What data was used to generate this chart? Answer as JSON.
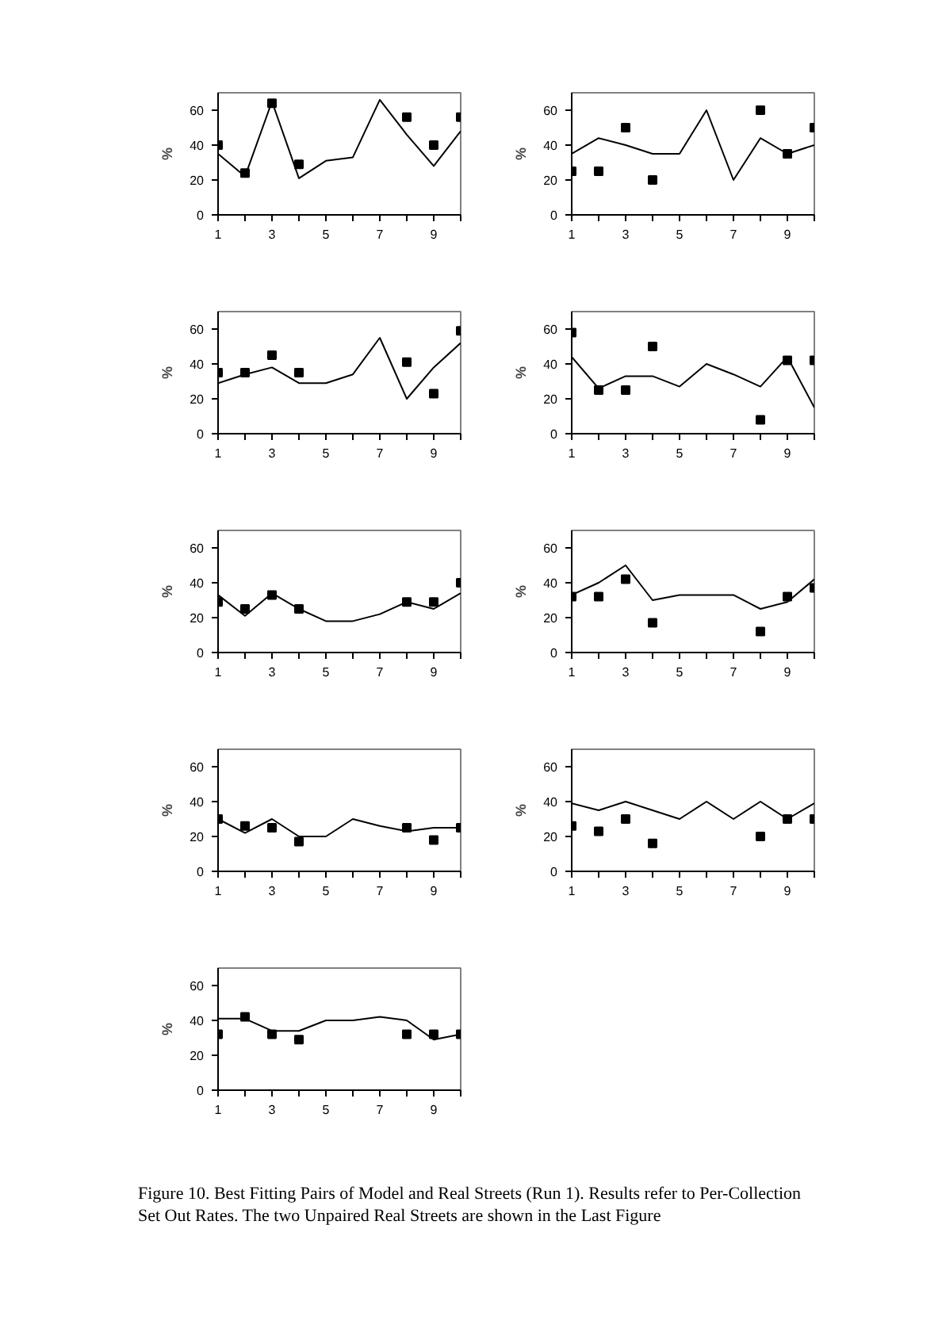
{
  "chart_data": [
    {
      "type": "line",
      "ylabel": "%",
      "x": [
        1,
        2,
        3,
        4,
        5,
        6,
        7,
        8,
        9,
        10
      ],
      "xlim": [
        1,
        10
      ],
      "ylim": [
        0,
        70
      ],
      "xticks": [
        1,
        {
          "value": 2,
          "label": null
        },
        3,
        {
          "value": 4,
          "label": null
        },
        5,
        {
          "value": 6,
          "label": null
        },
        7,
        {
          "value": 8,
          "label": null
        },
        9,
        {
          "value": 10,
          "label": null
        }
      ],
      "yticks": [
        0,
        20,
        40,
        60
      ],
      "series": [
        {
          "color": "#000000",
          "marker": "none",
          "values": [
            35,
            22,
            65,
            21,
            31,
            33,
            66,
            46,
            28,
            48
          ]
        },
        {
          "type": "scatter",
          "color": "#000000",
          "marker": "square",
          "x": [
            1,
            2,
            3,
            4,
            8,
            9,
            10
          ],
          "values": [
            40,
            24,
            64,
            29,
            56,
            40,
            56
          ]
        }
      ]
    },
    {
      "type": "line",
      "ylabel": "%",
      "x": [
        1,
        2,
        3,
        4,
        5,
        6,
        7,
        8,
        9,
        10
      ],
      "xlim": [
        1,
        10
      ],
      "ylim": [
        0,
        70
      ],
      "xticks": [
        1,
        {
          "value": 2,
          "label": null
        },
        3,
        {
          "value": 4,
          "label": null
        },
        5,
        {
          "value": 6,
          "label": null
        },
        7,
        {
          "value": 8,
          "label": null
        },
        9,
        {
          "value": 10,
          "label": null
        }
      ],
      "yticks": [
        0,
        20,
        40,
        60
      ],
      "series": [
        {
          "color": "#000000",
          "marker": "none",
          "values": [
            35,
            44,
            40,
            35,
            35,
            60,
            20,
            44,
            35,
            40
          ]
        },
        {
          "type": "scatter",
          "color": "#000000",
          "marker": "square",
          "x": [
            1,
            2,
            3,
            4,
            8,
            9,
            10
          ],
          "values": [
            25,
            25,
            50,
            20,
            60,
            35,
            50
          ]
        }
      ]
    },
    {
      "type": "line",
      "ylabel": "%",
      "x": [
        1,
        2,
        3,
        4,
        5,
        6,
        7,
        8,
        9,
        10
      ],
      "xlim": [
        1,
        10
      ],
      "ylim": [
        0,
        70
      ],
      "xticks": [
        1,
        {
          "value": 2,
          "label": null
        },
        3,
        {
          "value": 4,
          "label": null
        },
        5,
        {
          "value": 6,
          "label": null
        },
        7,
        {
          "value": 8,
          "label": null
        },
        9,
        {
          "value": 10,
          "label": null
        }
      ],
      "yticks": [
        0,
        20,
        40,
        60
      ],
      "series": [
        {
          "color": "#000000",
          "marker": "none",
          "values": [
            29,
            34,
            38,
            29,
            29,
            34,
            55,
            20,
            38,
            52
          ]
        },
        {
          "type": "scatter",
          "color": "#000000",
          "marker": "square",
          "x": [
            1,
            2,
            3,
            4,
            8,
            9,
            10
          ],
          "values": [
            35,
            35,
            45,
            35,
            41,
            23,
            59
          ]
        }
      ]
    },
    {
      "type": "line",
      "ylabel": "%",
      "x": [
        1,
        2,
        3,
        4,
        5,
        6,
        7,
        8,
        9,
        10
      ],
      "xlim": [
        1,
        10
      ],
      "ylim": [
        0,
        70
      ],
      "xticks": [
        1,
        {
          "value": 2,
          "label": null
        },
        3,
        {
          "value": 4,
          "label": null
        },
        5,
        {
          "value": 6,
          "label": null
        },
        7,
        {
          "value": 8,
          "label": null
        },
        9,
        {
          "value": 10,
          "label": null
        }
      ],
      "yticks": [
        0,
        20,
        40,
        60
      ],
      "series": [
        {
          "color": "#000000",
          "marker": "none",
          "values": [
            44,
            26,
            33,
            33,
            27,
            40,
            34,
            27,
            44,
            15
          ]
        },
        {
          "type": "scatter",
          "color": "#000000",
          "marker": "square",
          "x": [
            1,
            2,
            3,
            4,
            8,
            9,
            10
          ],
          "values": [
            58,
            25,
            25,
            50,
            8,
            42,
            42
          ]
        }
      ]
    },
    {
      "type": "line",
      "ylabel": "%",
      "x": [
        1,
        2,
        3,
        4,
        5,
        6,
        7,
        8,
        9,
        10
      ],
      "xlim": [
        1,
        10
      ],
      "ylim": [
        0,
        70
      ],
      "xticks": [
        1,
        {
          "value": 2,
          "label": null
        },
        3,
        {
          "value": 4,
          "label": null
        },
        5,
        {
          "value": 6,
          "label": null
        },
        7,
        {
          "value": 8,
          "label": null
        },
        9,
        {
          "value": 10,
          "label": null
        }
      ],
      "yticks": [
        0,
        20,
        40,
        60
      ],
      "series": [
        {
          "color": "#000000",
          "marker": "none",
          "values": [
            33,
            21,
            34,
            25,
            18,
            18,
            22,
            29,
            25,
            34
          ]
        },
        {
          "type": "scatter",
          "color": "#000000",
          "marker": "square",
          "x": [
            1,
            2,
            3,
            4,
            8,
            9,
            10
          ],
          "values": [
            29,
            25,
            33,
            25,
            29,
            29,
            40
          ]
        }
      ]
    },
    {
      "type": "line",
      "ylabel": "%",
      "x": [
        1,
        2,
        3,
        4,
        5,
        6,
        7,
        8,
        9,
        10
      ],
      "xlim": [
        1,
        10
      ],
      "ylim": [
        0,
        70
      ],
      "xticks": [
        1,
        {
          "value": 2,
          "label": null
        },
        3,
        {
          "value": 4,
          "label": null
        },
        5,
        {
          "value": 6,
          "label": null
        },
        7,
        {
          "value": 8,
          "label": null
        },
        9,
        {
          "value": 10,
          "label": null
        }
      ],
      "yticks": [
        0,
        20,
        40,
        60
      ],
      "series": [
        {
          "color": "#000000",
          "marker": "none",
          "values": [
            33,
            40,
            50,
            30,
            33,
            33,
            33,
            25,
            29,
            42
          ]
        },
        {
          "type": "scatter",
          "color": "#000000",
          "marker": "square",
          "x": [
            1,
            2,
            3,
            4,
            8,
            9,
            10
          ],
          "values": [
            32,
            32,
            42,
            17,
            12,
            32,
            37
          ]
        }
      ]
    },
    {
      "type": "line",
      "ylabel": "%",
      "x": [
        1,
        2,
        3,
        4,
        5,
        6,
        7,
        8,
        9,
        10
      ],
      "xlim": [
        1,
        10
      ],
      "ylim": [
        0,
        70
      ],
      "xticks": [
        1,
        {
          "value": 2,
          "label": null
        },
        3,
        {
          "value": 4,
          "label": null
        },
        5,
        {
          "value": 6,
          "label": null
        },
        7,
        {
          "value": 8,
          "label": null
        },
        9,
        {
          "value": 10,
          "label": null
        }
      ],
      "yticks": [
        0,
        20,
        40,
        60
      ],
      "series": [
        {
          "color": "#000000",
          "marker": "none",
          "values": [
            30,
            22,
            30,
            20,
            20,
            30,
            26,
            23,
            25,
            25
          ]
        },
        {
          "type": "scatter",
          "color": "#000000",
          "marker": "square",
          "x": [
            1,
            2,
            3,
            4,
            8,
            9,
            10
          ],
          "values": [
            30,
            26,
            25,
            17,
            25,
            18,
            25
          ]
        }
      ]
    },
    {
      "type": "line",
      "ylabel": "%",
      "x": [
        1,
        2,
        3,
        4,
        5,
        6,
        7,
        8,
        9,
        10
      ],
      "xlim": [
        1,
        10
      ],
      "ylim": [
        0,
        70
      ],
      "xticks": [
        1,
        {
          "value": 2,
          "label": null
        },
        3,
        {
          "value": 4,
          "label": null
        },
        5,
        {
          "value": 6,
          "label": null
        },
        7,
        {
          "value": 8,
          "label": null
        },
        9,
        {
          "value": 10,
          "label": null
        }
      ],
      "yticks": [
        0,
        20,
        40,
        60
      ],
      "series": [
        {
          "color": "#000000",
          "marker": "none",
          "values": [
            39,
            35,
            40,
            35,
            30,
            40,
            30,
            40,
            30,
            39
          ]
        },
        {
          "type": "scatter",
          "color": "#000000",
          "marker": "square",
          "x": [
            1,
            2,
            3,
            4,
            8,
            9,
            10
          ],
          "values": [
            26,
            23,
            30,
            16,
            20,
            30,
            30
          ]
        }
      ]
    },
    {
      "type": "line",
      "ylabel": "%",
      "x": [
        1,
        2,
        3,
        4,
        5,
        6,
        7,
        8,
        9,
        10
      ],
      "xlim": [
        1,
        10
      ],
      "ylim": [
        0,
        70
      ],
      "xticks": [
        1,
        {
          "value": 2,
          "label": null
        },
        3,
        {
          "value": 4,
          "label": null
        },
        5,
        {
          "value": 6,
          "label": null
        },
        7,
        {
          "value": 8,
          "label": null
        },
        9,
        {
          "value": 10,
          "label": null
        }
      ],
      "yticks": [
        0,
        20,
        40,
        60
      ],
      "annotations": [
        "Figure 10.  Best Fitting Pairs of Model and Real Streets (Run 1). Results refer to Per-Collection Set Out Rates. The two Unpaired Real Streets are shown in the Last Figure"
      ],
      "series": [
        {
          "color": "#000000",
          "marker": "none",
          "values": [
            41,
            41,
            34,
            34,
            40,
            40,
            42,
            40,
            29,
            32
          ]
        },
        {
          "type": "scatter",
          "color": "#000000",
          "marker": "square",
          "x": [
            1,
            2,
            3,
            4,
            8,
            9,
            10
          ],
          "values": [
            32,
            42,
            32,
            29,
            32,
            32,
            32
          ]
        }
      ]
    }
  ]
}
